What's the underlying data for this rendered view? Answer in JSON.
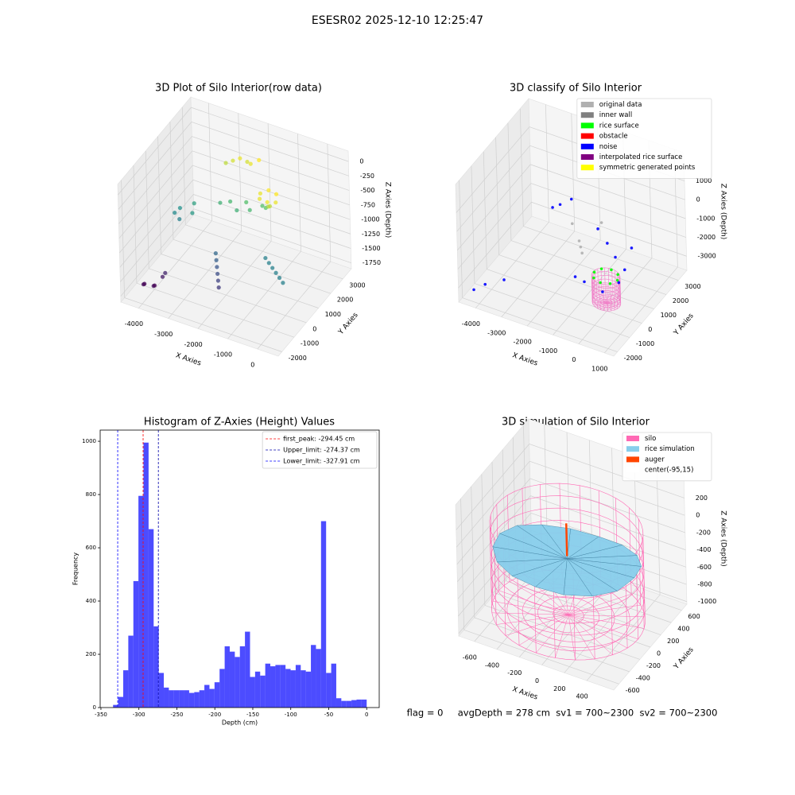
{
  "title": "ESESR02 2025-12-10 12:25:47",
  "footer": "flag = 0     avgDepth = 278 cm  sv1 = 700~2300  sv2 = 700~2300",
  "chart_data": [
    {
      "type": "scatter3d",
      "title": "3D Plot of Silo Interior(row data)",
      "xlabel": "X Axies",
      "ylabel": "Y Axies",
      "zlabel": "Z Axies (Depth)",
      "xlim": [
        -4600,
        700
      ],
      "ylim": [
        -2300,
        3700
      ],
      "zlim": [
        -1850,
        180
      ],
      "xticks": [
        -4000,
        -3000,
        -2000,
        -1000,
        0
      ],
      "yticks": [
        -2000,
        -1000,
        0,
        1000,
        2000,
        3000
      ],
      "zticks": [
        0,
        -250,
        -500,
        -750,
        -1000,
        -1250,
        -1500,
        -1750
      ],
      "grid": true,
      "colormap": "viridis",
      "series": [
        {
          "x": [
            -4200,
            -4250,
            -3900,
            -3950,
            -3800,
            -3750,
            -4000,
            -4100,
            -3900,
            -3600,
            -3500,
            -2400,
            -2300,
            -2200,
            -2100,
            -2000,
            -1900,
            -2800,
            -2500,
            -2200,
            -2000,
            -1800,
            -1500,
            -1300,
            -3000,
            -2800,
            -2600,
            -2400,
            -2200,
            -2000,
            -600,
            -400,
            -200,
            0,
            200,
            -800,
            -1200,
            -900,
            -700,
            -800,
            -1100,
            -1300,
            -1000,
            -900
          ],
          "y": [
            -1400,
            -1200,
            -1300,
            -1100,
            -800,
            -700,
            1200,
            1000,
            900,
            1400,
            1000,
            200,
            0,
            -200,
            -400,
            -600,
            -800,
            1600,
            1700,
            1500,
            1800,
            1600,
            1900,
            1700,
            2600,
            2700,
            2800,
            2900,
            2700,
            2900,
            200,
            0,
            -200,
            -400,
            -600,
            400,
            1000,
            900,
            1100,
            1400,
            1500,
            1300,
            1200,
            1100
          ],
          "z": [
            -1700,
            -1750,
            -1700,
            -1750,
            -1650,
            -1600,
            -1000,
            -1050,
            -1100,
            -900,
            -950,
            -1250,
            -1300,
            -1350,
            -1400,
            -1450,
            -1500,
            -800,
            -750,
            -800,
            -700,
            -750,
            -700,
            -650,
            -400,
            -350,
            -300,
            -350,
            -300,
            -250,
            -1100,
            -1100,
            -1100,
            -1100,
            -1100,
            -1100,
            -300,
            -280,
            -300,
            -250,
            -260,
            -300,
            -450,
            -400
          ]
        }
      ]
    },
    {
      "type": "scatter3d",
      "title": "3D classify of Silo Interior",
      "xlabel": "X Axies",
      "ylabel": "Y Axies",
      "zlabel": "Z Axies (Depth)",
      "xlim": [
        -4660,
        1360
      ],
      "ylim": [
        -2300,
        3700
      ],
      "zlim": [
        -3750,
        2500
      ],
      "xticks": [
        -4000,
        -3000,
        -2000,
        -1000,
        0,
        1000
      ],
      "yticks": [
        -2000,
        -1000,
        0,
        1000,
        2000,
        3000
      ],
      "zticks": [
        1000,
        0,
        -1000,
        -2000,
        -3000
      ],
      "grid": true,
      "legend": "upper right",
      "cylinder": {
        "color": "#f080c8",
        "center": [
          0,
          0
        ],
        "radius": 500,
        "zlim": [
          -3300,
          -1900
        ]
      },
      "series": [
        {
          "name": "original data",
          "color": "#b0b0b0",
          "x": [
            -1500,
            -1400,
            -1300,
            -2000,
            -1000
          ],
          "y": [
            1000,
            900,
            800,
            1500,
            1800
          ],
          "z": [
            -1500,
            -1700,
            -1900,
            -1200,
            -900
          ]
        },
        {
          "name": "inner wall",
          "color": "#808080",
          "x": [],
          "y": [],
          "z": []
        },
        {
          "name": "rice surface",
          "color": "#00ff00",
          "x": [
            450,
            318,
            0,
            -318,
            -450,
            -318,
            0,
            318
          ],
          "y": [
            0,
            318,
            450,
            318,
            0,
            -318,
            -450,
            -318
          ],
          "z": [
            -1900,
            -1900,
            -1900,
            -1900,
            -1900,
            -1900,
            -1900,
            -1900
          ]
        },
        {
          "name": "obstacle",
          "color": "#ff0000",
          "x": [],
          "y": [],
          "z": []
        },
        {
          "name": "noise",
          "color": "#0000ff",
          "x": [
            -4300,
            -4000,
            -3500,
            -3000,
            -2800,
            -2500,
            -1000,
            -500,
            0,
            500,
            600,
            200,
            -700,
            -1200,
            300
          ],
          "y": [
            -1800,
            -1500,
            -1000,
            2000,
            2200,
            2500,
            1500,
            1200,
            800,
            500,
            -200,
            -700,
            -300,
            0,
            1500
          ],
          "z": [
            -3300,
            -3100,
            -3000,
            -1200,
            -1100,
            -900,
            -1000,
            -1300,
            -1500,
            -1700,
            -1800,
            -2100,
            -2300,
            -2500,
            -1400
          ]
        },
        {
          "name": "interpolated rice surface",
          "color": "#800080",
          "x": [],
          "y": [],
          "z": []
        },
        {
          "name": "symmetric generated points",
          "color": "#ffff00",
          "x": [],
          "y": [],
          "z": []
        }
      ]
    },
    {
      "type": "histogram",
      "title": "Histogram of Z-Axies (Height) Values",
      "xlabel": "Depth (cm)",
      "ylabel": "Frequency",
      "xlim": [
        -351,
        16.5
      ],
      "ylim": [
        0,
        1042
      ],
      "xticks": [
        -350,
        -300,
        -250,
        -200,
        -150,
        -100,
        -50,
        0
      ],
      "yticks": [
        0,
        200,
        400,
        600,
        800,
        1000
      ],
      "color": "#0000ff",
      "alpha": 0.7,
      "legend": "upper right",
      "bins": [
        -334,
        -327.32,
        -320.64,
        -313.96,
        -307.28,
        -300.6,
        -293.92,
        -287.24,
        -280.56,
        -273.88,
        -267.2,
        -260.52,
        -253.84,
        -247.16,
        -240.48,
        -233.8,
        -227.12,
        -220.44,
        -213.76,
        -207.08,
        -200.4,
        -193.72,
        -187.04,
        -180.36,
        -173.68,
        -167,
        -160.32,
        -153.64,
        -146.96,
        -140.28,
        -133.6,
        -126.92,
        -120.24,
        -113.56,
        -106.88,
        -100.2,
        -93.52,
        -86.84,
        -80.16,
        -73.48,
        -66.8,
        -60.12,
        -53.44,
        -46.76,
        -40.08,
        -33.4,
        -26.72,
        -20.04,
        -13.36,
        -6.68,
        0
      ],
      "values": [
        10,
        40,
        140,
        270,
        475,
        795,
        995,
        670,
        305,
        130,
        75,
        65,
        65,
        65,
        65,
        55,
        58,
        65,
        85,
        70,
        95,
        145,
        230,
        210,
        190,
        230,
        285,
        115,
        135,
        120,
        165,
        155,
        160,
        160,
        145,
        140,
        160,
        140,
        135,
        235,
        220,
        700,
        130,
        165,
        35,
        25,
        25,
        28,
        30,
        30
      ],
      "vlines": [
        {
          "name": "first_peak: -294.45 cm",
          "value": -294.45,
          "color": "#ff0000"
        },
        {
          "name": "Upper_limit: -274.37 cm",
          "value": -274.37,
          "color": "#0000aa"
        },
        {
          "name": "Lower_limit: -327.91 cm",
          "value": -327.91,
          "color": "#0000ff"
        }
      ]
    },
    {
      "type": "scatter3d",
      "title": "3D simulation of Silo Interior",
      "xlabel": "X Axies",
      "ylabel": "Y Axies",
      "zlabel": "Z Axies (Depth)",
      "xlim": [
        -740,
        640
      ],
      "ylim": [
        -700,
        700
      ],
      "zlim": [
        -1030,
        490
      ],
      "xticks": [
        -600,
        -400,
        -200,
        0,
        200,
        400
      ],
      "yticks": [
        -600,
        -400,
        -200,
        0,
        200,
        400,
        600
      ],
      "zticks": [
        200,
        0,
        -200,
        -400,
        -600,
        -800,
        -1000
      ],
      "grid": true,
      "legend": "upper right",
      "series": [
        {
          "name": "silo",
          "color": "#ff69b4",
          "center": [
            -95,
            15
          ],
          "radius": 620,
          "zlim": [
            -1000,
            0
          ]
        },
        {
          "name": "rice simulation",
          "color": "#87ceeb",
          "center": [
            -95,
            15
          ],
          "radius": 600,
          "center_z": -350,
          "z": [
            -300,
            -350,
            -420,
            -480,
            -520,
            -500,
            -450,
            -380,
            -330,
            -300,
            -280,
            -260,
            -250,
            -270,
            -290,
            -310
          ]
        },
        {
          "name": "auger",
          "color": "#ff4500",
          "x": [
            -95,
            -95
          ],
          "y": [
            15,
            15
          ],
          "z": [
            -320,
            60
          ]
        },
        {
          "name": "center(-95,15)",
          "color": "#ffffff"
        }
      ]
    }
  ]
}
